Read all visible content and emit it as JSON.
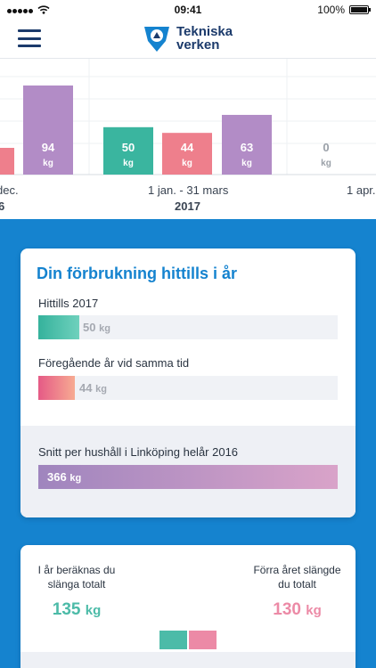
{
  "status_bar": {
    "time": "09:41",
    "battery": "100%"
  },
  "header": {
    "logo_line1": "Tekniska",
    "logo_line2": "verken"
  },
  "chart_data": {
    "type": "bar",
    "unit": "kg",
    "categories": [
      "dec.",
      "1 jan. - 31 mars",
      "1 apr."
    ],
    "series": [
      {
        "values": [
          null,
          50,
          null
        ],
        "color": "#3ab59f"
      },
      {
        "values": [
          null,
          44,
          null
        ],
        "color": "#ee7f8c"
      },
      {
        "values": [
          94,
          63,
          0
        ],
        "color": "#b28cc6"
      }
    ],
    "year_labels": [
      "6",
      "2017"
    ],
    "period_labels": [
      "dec.",
      "1 jan. - 31 mars",
      "1 apr."
    ]
  },
  "summary": {
    "title": "Din förbrukning hittills i år",
    "rows": [
      {
        "label": "Hittills 2017",
        "value": "50",
        "unit": "kg",
        "fraction": 0.14,
        "style": "green"
      },
      {
        "label": "Föregående år vid samma tid",
        "value": "44",
        "unit": "kg",
        "fraction": 0.12,
        "style": "red"
      },
      {
        "label": "Snitt per hushåll i Linköping helår 2016",
        "value": "366",
        "unit": "kg",
        "fraction": 1.0,
        "style": "purple"
      }
    ]
  },
  "projection": {
    "left_label_line1": "I år beräknas du",
    "left_label_line2": "slänga totalt",
    "left_value": "135",
    "left_unit": "kg",
    "right_label_line1": "Förra året slängde",
    "right_label_line2": "du totalt",
    "right_value": "130",
    "right_unit": "kg",
    "colors": {
      "green": "#4cbba8",
      "pink": "#ec8aa6"
    }
  }
}
